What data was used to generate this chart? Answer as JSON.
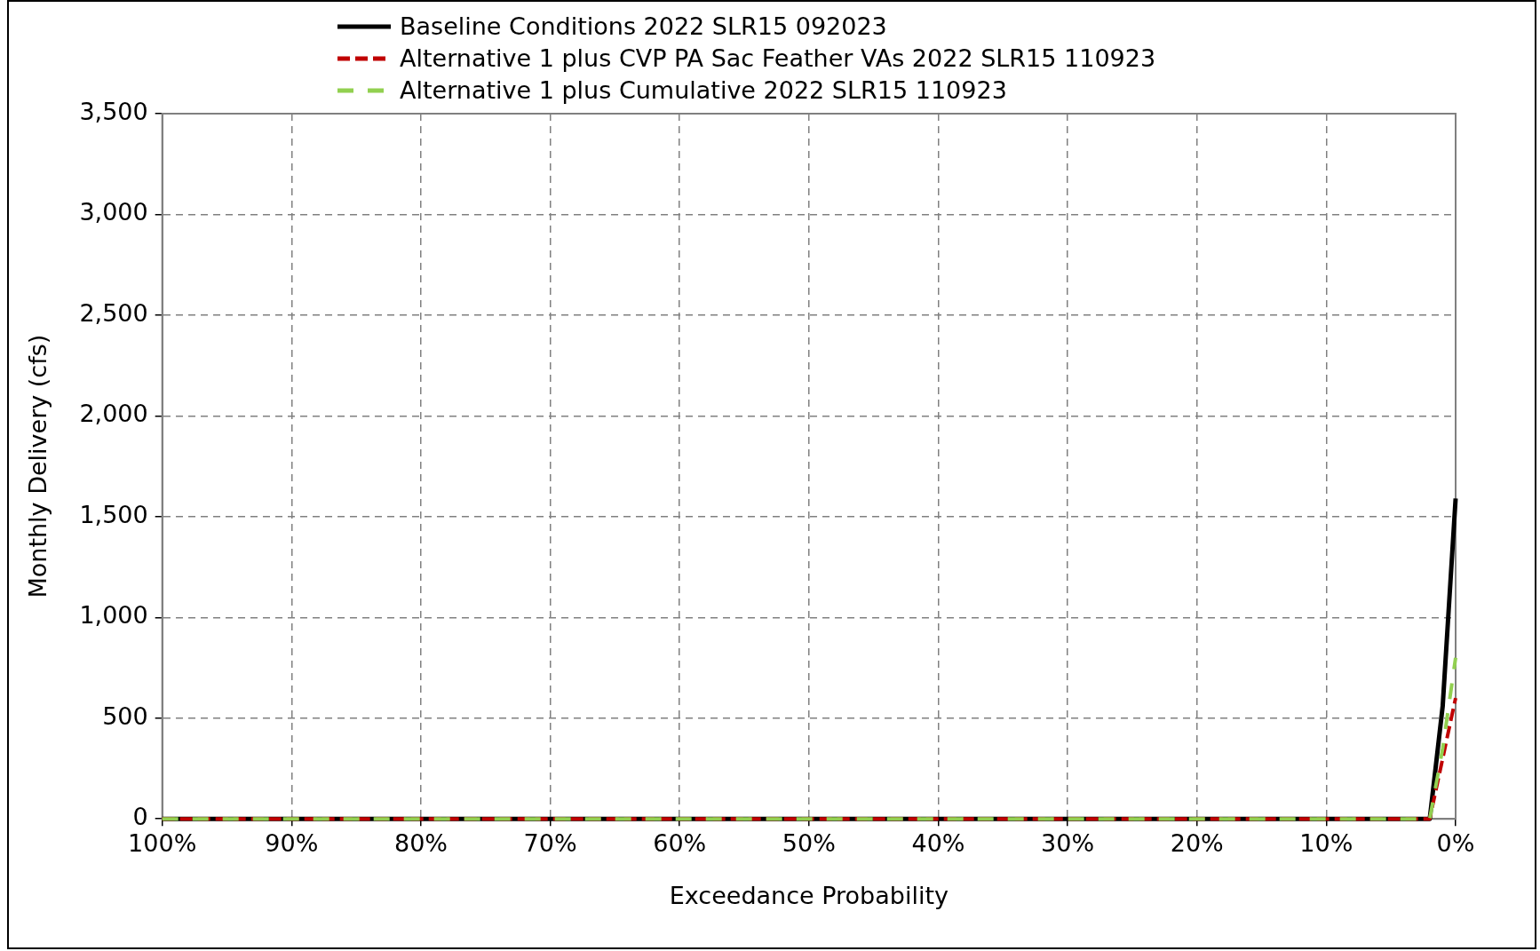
{
  "chart_data": {
    "type": "line",
    "xlabel": "Exceedance Probability",
    "ylabel": "Monthly Delivery (cfs)",
    "x": [
      100,
      2,
      1,
      0
    ],
    "series": [
      {
        "name": "Baseline Conditions 2022 SLR15 092023",
        "color": "#000000",
        "line_style": "solid",
        "values": [
          0,
          0,
          560,
          1590
        ]
      },
      {
        "name": "Alternative 1 plus CVP PA Sac Feather VAs 2022 SLR15 110923",
        "color": "#c00000",
        "line_style": "dashed",
        "values": [
          0,
          0,
          300,
          600
        ]
      },
      {
        "name": "Alternative 1 plus Cumulative 2022 SLR15 110923",
        "color": "#92d050",
        "line_style": "dashed",
        "values": [
          0,
          0,
          350,
          800
        ]
      }
    ],
    "xlim": [
      100,
      0
    ],
    "xticks": [
      {
        "value": 100,
        "label": "100%"
      },
      {
        "value": 90,
        "label": "90%"
      },
      {
        "value": 80,
        "label": "80%"
      },
      {
        "value": 70,
        "label": "70%"
      },
      {
        "value": 60,
        "label": "60%"
      },
      {
        "value": 50,
        "label": "50%"
      },
      {
        "value": 40,
        "label": "40%"
      },
      {
        "value": 30,
        "label": "30%"
      },
      {
        "value": 20,
        "label": "20%"
      },
      {
        "value": 10,
        "label": "10%"
      },
      {
        "value": 0,
        "label": "0%"
      }
    ],
    "ylim": [
      0,
      3500
    ],
    "yticks": [
      {
        "value": 0,
        "label": "0"
      },
      {
        "value": 500,
        "label": "500"
      },
      {
        "value": 1000,
        "label": "1,000"
      },
      {
        "value": 1500,
        "label": "1,500"
      },
      {
        "value": 2000,
        "label": "2,000"
      },
      {
        "value": 2500,
        "label": "2,500"
      },
      {
        "value": 3000,
        "label": "3,000"
      },
      {
        "value": 3500,
        "label": "3,500"
      }
    ],
    "grid": true,
    "legend": "top",
    "marker": "none"
  }
}
